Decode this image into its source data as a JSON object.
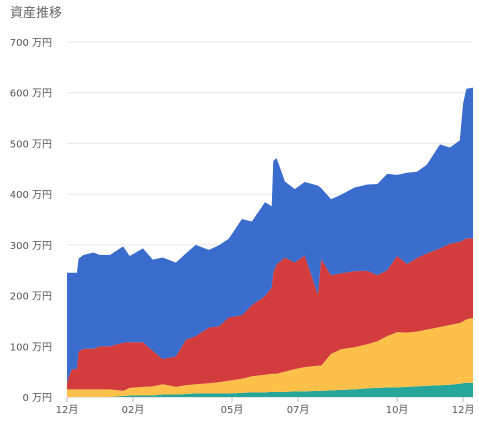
{
  "chart_data": {
    "type": "area",
    "stacked": true,
    "title": "資産推移",
    "ylim": [
      0,
      700
    ],
    "y_ticks": [
      "0 万円",
      "100 万円",
      "200 万円",
      "300 万円",
      "400 万円",
      "500 万円",
      "600 万円",
      "700 万円"
    ],
    "y_tick_values": [
      0,
      100,
      200,
      300,
      400,
      500,
      600,
      700
    ],
    "x_ticks": [
      "12月",
      "02月",
      "05月",
      "07月",
      "10月",
      "12月"
    ],
    "x_tick_positions": [
      0,
      2,
      5,
      7,
      10,
      12
    ],
    "xlim": [
      0,
      12.3
    ],
    "grid": true,
    "legend": "none",
    "colors": [
      "#26a69a",
      "#ffc04a",
      "#d23c3c",
      "#3a6ccd"
    ],
    "x": [
      0,
      0.05,
      0.15,
      0.3,
      0.35,
      0.5,
      0.8,
      1.0,
      1.3,
      1.7,
      1.9,
      2.3,
      2.6,
      2.9,
      3.3,
      3.6,
      3.9,
      4.3,
      4.6,
      4.9,
      5.3,
      5.6,
      6.0,
      6.2,
      6.25,
      6.35,
      6.6,
      6.9,
      7.2,
      7.6,
      7.7,
      8.0,
      8.3,
      8.7,
      9.1,
      9.4,
      9.7,
      10.0,
      10.3,
      10.6,
      10.9,
      11.3,
      11.6,
      11.9,
      12.0,
      12.1,
      12.3
    ],
    "series": [
      {
        "values": [
          0,
          0,
          0,
          0,
          0,
          0,
          0,
          0,
          0,
          2,
          3,
          3,
          3,
          5,
          5,
          6,
          7,
          7,
          7,
          7,
          8,
          9,
          9,
          10,
          10,
          10,
          10,
          11,
          11,
          12,
          12,
          13,
          14,
          15,
          17,
          18,
          19,
          19,
          20,
          21,
          22,
          23,
          24,
          26,
          27,
          28,
          28
        ]
      },
      {
        "values": [
          15,
          15,
          15,
          15,
          15,
          15,
          15,
          15,
          15,
          10,
          15,
          17,
          18,
          20,
          15,
          17,
          18,
          20,
          22,
          25,
          28,
          32,
          35,
          36,
          36,
          36,
          40,
          44,
          48,
          50,
          50,
          72,
          80,
          83,
          87,
          92,
          101,
          109,
          107,
          108,
          111,
          115,
          118,
          120,
          122,
          125,
          128
        ]
      },
      {
        "values": [
          10,
          25,
          40,
          40,
          75,
          80,
          80,
          85,
          85,
          95,
          90,
          88,
          70,
          50,
          60,
          90,
          95,
          110,
          110,
          125,
          125,
          140,
          155,
          170,
          200,
          215,
          225,
          210,
          220,
          140,
          210,
          155,
          150,
          150,
          145,
          130,
          130,
          150,
          135,
          145,
          150,
          155,
          160,
          160,
          160,
          160,
          157
        ]
      },
      {
        "values": [
          220,
          205,
          190,
          190,
          183,
          185,
          190,
          180,
          180,
          190,
          170,
          185,
          180,
          200,
          185,
          170,
          180,
          153,
          160,
          155,
          190,
          165,
          185,
          160,
          220,
          210,
          150,
          145,
          145,
          215,
          140,
          150,
          155,
          165,
          170,
          180,
          190,
          160,
          180,
          170,
          175,
          205,
          190,
          200,
          270,
          295,
          297
        ]
      }
    ]
  }
}
